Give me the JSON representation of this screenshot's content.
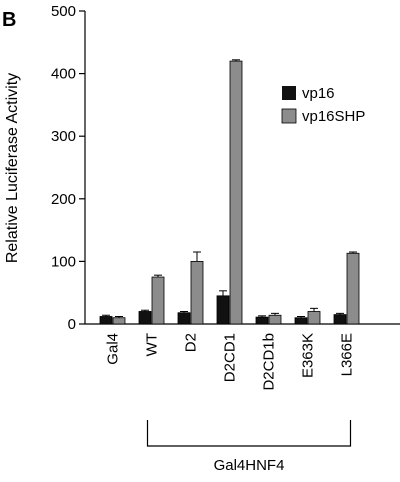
{
  "panel_label": "B",
  "colors": {
    "vp16": "#111111",
    "vp16SHP": "#8c8c8c"
  },
  "chart_data": {
    "type": "bar",
    "title": "",
    "ylabel": "Relative Luciferase Activity",
    "xlabel": "",
    "ylim": [
      0,
      500
    ],
    "yticks": [
      0,
      100,
      200,
      300,
      400,
      500
    ],
    "categories": [
      "Gal4",
      "WT",
      "D2",
      "D2CD1",
      "D2CD1b",
      "E363K",
      "L366E"
    ],
    "series": [
      {
        "name": "vp16",
        "values": [
          12,
          20,
          18,
          45,
          11,
          10,
          15
        ],
        "errors": [
          2,
          2,
          2,
          8,
          2,
          2,
          2
        ]
      },
      {
        "name": "vp16SHP",
        "values": [
          10,
          75,
          100,
          420,
          14,
          20,
          113
        ],
        "errors": [
          2,
          3,
          15,
          2,
          3,
          5,
          2
        ]
      }
    ],
    "legend_position": "top-right",
    "group_bracket": {
      "label": "Gal4HNF4",
      "from_category": "WT",
      "to_category": "L366E"
    }
  }
}
